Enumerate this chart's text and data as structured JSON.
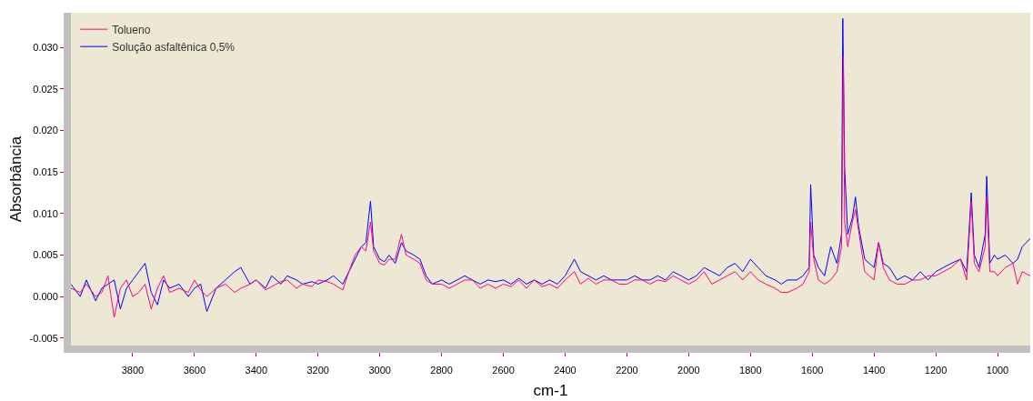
{
  "chart_data": {
    "type": "line",
    "xlabel": "cm-1",
    "ylabel": "Absorbância",
    "legend": "top left",
    "grid": false,
    "marker": "none",
    "line_style": "solid",
    "xlim": [
      4000,
      894
    ],
    "xticks": [
      3800,
      3600,
      3400,
      3200,
      3000,
      2800,
      2600,
      2400,
      2200,
      2000,
      1800,
      1600,
      1400,
      1200,
      1000
    ],
    "ylim": [
      -0.0059,
      0.0342
    ],
    "yticks": [
      {
        "value": -0.005,
        "label": "-0.005"
      },
      {
        "value": 0,
        "label": "0.000"
      },
      {
        "value": 0.005,
        "label": "0.005"
      },
      {
        "value": 0.01,
        "label": "0.010"
      },
      {
        "value": 0.015,
        "label": "0.015"
      },
      {
        "value": 0.02,
        "label": "0.020"
      },
      {
        "value": 0.025,
        "label": "0.025"
      },
      {
        "value": 0.03,
        "label": "0.030"
      }
    ],
    "series": [
      {
        "name": "Tolueno",
        "color": "#ff0080",
        "x": [
          4000,
          3970,
          3950,
          3920,
          3900,
          3880,
          3860,
          3840,
          3820,
          3800,
          3780,
          3760,
          3740,
          3720,
          3700,
          3680,
          3650,
          3620,
          3600,
          3580,
          3560,
          3530,
          3500,
          3470,
          3450,
          3420,
          3400,
          3370,
          3350,
          3320,
          3300,
          3270,
          3250,
          3220,
          3200,
          3170,
          3150,
          3120,
          3100,
          3080,
          3060,
          3045,
          3030,
          3020,
          3000,
          2985,
          2970,
          2950,
          2930,
          2915,
          2890,
          2870,
          2850,
          2830,
          2800,
          2775,
          2750,
          2725,
          2700,
          2675,
          2650,
          2625,
          2600,
          2575,
          2550,
          2525,
          2500,
          2475,
          2450,
          2425,
          2400,
          2370,
          2350,
          2325,
          2300,
          2275,
          2250,
          2225,
          2200,
          2175,
          2150,
          2125,
          2100,
          2075,
          2050,
          2025,
          2000,
          1975,
          1950,
          1925,
          1900,
          1875,
          1850,
          1825,
          1800,
          1775,
          1750,
          1720,
          1700,
          1680,
          1650,
          1630,
          1610,
          1605,
          1595,
          1580,
          1560,
          1540,
          1520,
          1505,
          1499,
          1495,
          1485,
          1470,
          1460,
          1450,
          1430,
          1415,
          1400,
          1385,
          1370,
          1350,
          1325,
          1300,
          1275,
          1250,
          1225,
          1200,
          1175,
          1150,
          1120,
          1100,
          1085,
          1075,
          1060,
          1040,
          1035,
          1025,
          1010,
          1000,
          975,
          950,
          935,
          920,
          894
        ],
        "values": [
          0.001,
          0.0005,
          0.0015,
          0.0,
          0.0005,
          0.0025,
          -0.0025,
          0.001,
          0.002,
          0.0,
          0.0005,
          0.0015,
          -0.0015,
          0.001,
          0.0025,
          0.0005,
          0.001,
          0.0005,
          0.002,
          0.0008,
          0.0,
          0.001,
          0.0015,
          0.0005,
          0.001,
          0.0015,
          0.002,
          0.0008,
          0.0012,
          0.0018,
          0.002,
          0.001,
          0.0015,
          0.0012,
          0.002,
          0.0018,
          0.0015,
          0.0008,
          0.003,
          0.005,
          0.006,
          0.0055,
          0.009,
          0.0055,
          0.004,
          0.0038,
          0.0045,
          0.0045,
          0.0075,
          0.005,
          0.0045,
          0.004,
          0.002,
          0.0015,
          0.0015,
          0.001,
          0.0015,
          0.002,
          0.002,
          0.001,
          0.0015,
          0.001,
          0.0015,
          0.0012,
          0.002,
          0.001,
          0.002,
          0.0012,
          0.0015,
          0.001,
          0.002,
          0.003,
          0.0015,
          0.0022,
          0.0015,
          0.002,
          0.002,
          0.0015,
          0.0015,
          0.002,
          0.002,
          0.0015,
          0.002,
          0.0018,
          0.0025,
          0.002,
          0.0015,
          0.002,
          0.003,
          0.0015,
          0.002,
          0.0025,
          0.003,
          0.002,
          0.003,
          0.002,
          0.0015,
          0.001,
          0.0005,
          0.0005,
          0.001,
          0.0015,
          0.003,
          0.009,
          0.0045,
          0.002,
          0.0015,
          0.002,
          0.003,
          0.006,
          0.029,
          0.009,
          0.006,
          0.009,
          0.0105,
          0.008,
          0.003,
          0.0025,
          0.002,
          0.0065,
          0.0035,
          0.002,
          0.0015,
          0.0015,
          0.002,
          0.002,
          0.0025,
          0.0025,
          0.003,
          0.0035,
          0.0045,
          0.002,
          0.0115,
          0.004,
          0.003,
          0.006,
          0.012,
          0.003,
          0.003,
          0.0025,
          0.0035,
          0.004,
          0.0015,
          0.003,
          0.0025
        ]
      },
      {
        "name": "Solução asfaltênica 0,5%",
        "color": "#0000ff",
        "x": [
          4000,
          3970,
          3950,
          3920,
          3900,
          3880,
          3860,
          3840,
          3820,
          3800,
          3780,
          3760,
          3740,
          3720,
          3700,
          3680,
          3650,
          3620,
          3600,
          3580,
          3560,
          3530,
          3500,
          3470,
          3450,
          3420,
          3400,
          3370,
          3350,
          3320,
          3300,
          3270,
          3250,
          3220,
          3200,
          3170,
          3150,
          3120,
          3100,
          3080,
          3060,
          3045,
          3030,
          3020,
          3000,
          2985,
          2970,
          2950,
          2930,
          2915,
          2890,
          2870,
          2850,
          2830,
          2800,
          2775,
          2750,
          2725,
          2700,
          2675,
          2650,
          2625,
          2600,
          2575,
          2550,
          2525,
          2500,
          2475,
          2450,
          2425,
          2400,
          2370,
          2350,
          2325,
          2300,
          2275,
          2250,
          2225,
          2200,
          2175,
          2150,
          2125,
          2100,
          2075,
          2050,
          2025,
          2000,
          1975,
          1950,
          1925,
          1900,
          1875,
          1850,
          1825,
          1800,
          1775,
          1750,
          1720,
          1700,
          1680,
          1650,
          1630,
          1610,
          1605,
          1595,
          1580,
          1560,
          1540,
          1520,
          1505,
          1501,
          1495,
          1485,
          1470,
          1460,
          1450,
          1430,
          1415,
          1400,
          1385,
          1370,
          1350,
          1325,
          1300,
          1275,
          1250,
          1225,
          1200,
          1175,
          1150,
          1120,
          1100,
          1085,
          1075,
          1060,
          1040,
          1035,
          1025,
          1010,
          1000,
          975,
          950,
          935,
          920,
          894
        ],
        "values": [
          0.0015,
          0.0,
          0.002,
          -0.0005,
          0.001,
          0.0015,
          0.002,
          -0.0015,
          0.001,
          0.002,
          0.003,
          0.004,
          0.0005,
          -0.001,
          0.002,
          0.001,
          0.0015,
          0.0,
          0.001,
          0.0015,
          -0.0018,
          0.001,
          0.002,
          0.003,
          0.0035,
          0.0015,
          0.002,
          0.001,
          0.0025,
          0.0015,
          0.0025,
          0.002,
          0.0015,
          0.0018,
          0.0015,
          0.002,
          0.0025,
          0.0015,
          0.003,
          0.0045,
          0.006,
          0.0065,
          0.0115,
          0.006,
          0.0045,
          0.0042,
          0.005,
          0.004,
          0.0065,
          0.0055,
          0.005,
          0.0045,
          0.0025,
          0.0015,
          0.002,
          0.0015,
          0.002,
          0.0025,
          0.002,
          0.0015,
          0.002,
          0.0018,
          0.002,
          0.0015,
          0.0022,
          0.0015,
          0.002,
          0.0015,
          0.002,
          0.0015,
          0.0025,
          0.0045,
          0.003,
          0.0025,
          0.002,
          0.0025,
          0.002,
          0.002,
          0.002,
          0.0025,
          0.002,
          0.002,
          0.0025,
          0.002,
          0.003,
          0.0025,
          0.002,
          0.0025,
          0.0035,
          0.003,
          0.0025,
          0.0035,
          0.004,
          0.003,
          0.0045,
          0.0035,
          0.0025,
          0.002,
          0.0015,
          0.002,
          0.002,
          0.0025,
          0.0035,
          0.0135,
          0.005,
          0.0035,
          0.0025,
          0.006,
          0.004,
          0.0075,
          0.0335,
          0.0155,
          0.0075,
          0.0095,
          0.012,
          0.0085,
          0.0045,
          0.004,
          0.0035,
          0.0065,
          0.004,
          0.0035,
          0.002,
          0.0025,
          0.002,
          0.003,
          0.002,
          0.003,
          0.0035,
          0.004,
          0.0045,
          0.003,
          0.0125,
          0.005,
          0.0035,
          0.0075,
          0.0145,
          0.004,
          0.005,
          0.0045,
          0.005,
          0.004,
          0.0045,
          0.006,
          0.007
        ]
      }
    ]
  }
}
